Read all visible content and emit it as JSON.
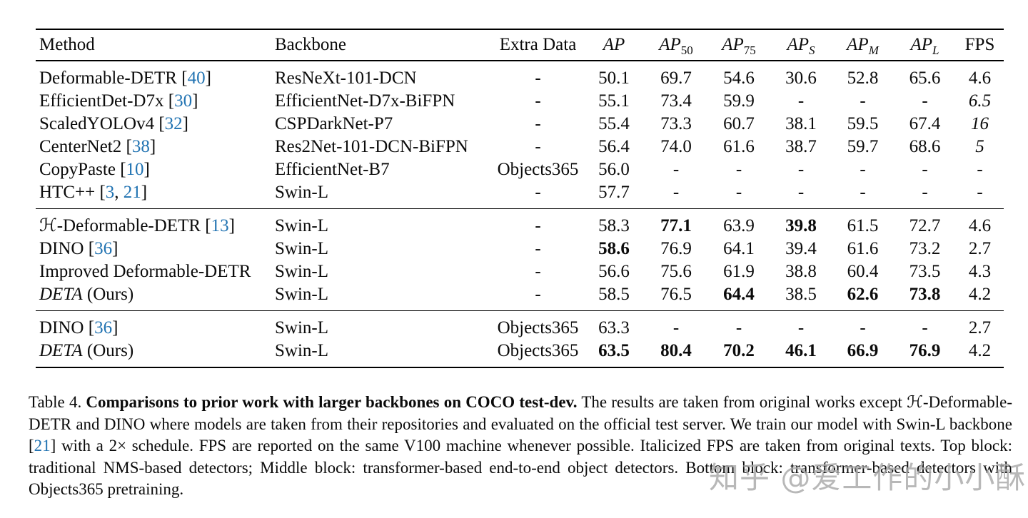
{
  "colors": {
    "citation_blue": "#2173b2",
    "text": "#0b0b0b",
    "watermark_gray": "#a9a9a9",
    "background": "#ffffff"
  },
  "table": {
    "columns": [
      {
        "label": "Method",
        "align": "left"
      },
      {
        "label": "Backbone",
        "align": "left"
      },
      {
        "label": "Extra Data",
        "align": "center"
      },
      {
        "label": "AP",
        "math": true
      },
      {
        "label": "AP",
        "sub": "50",
        "math": true
      },
      {
        "label": "AP",
        "sub": "75",
        "math": true
      },
      {
        "label": "AP",
        "sub": "S",
        "sub_italic": true,
        "math": true
      },
      {
        "label": "AP",
        "sub": "M",
        "sub_italic": true,
        "math": true
      },
      {
        "label": "AP",
        "sub": "L",
        "sub_italic": true,
        "math": true
      },
      {
        "label": "FPS"
      }
    ],
    "blocks": [
      [
        {
          "method": [
            {
              "t": "Deformable-DETR "
            },
            {
              "t": "["
            },
            {
              "t": "40",
              "c": true
            },
            {
              "t": "]"
            }
          ],
          "cells": [
            "ResNeXt-101-DCN",
            "-",
            "50.1",
            "69.7",
            "54.6",
            "30.6",
            "52.8",
            "65.6",
            "4.6"
          ]
        },
        {
          "method": [
            {
              "t": "EfficientDet-D7x "
            },
            {
              "t": "["
            },
            {
              "t": "30",
              "c": true
            },
            {
              "t": "]"
            }
          ],
          "cells": [
            "EfficientNet-D7x-BiFPN",
            "-",
            "55.1",
            "73.4",
            "59.9",
            "-",
            "-",
            "-",
            {
              "t": "6.5",
              "i": true
            }
          ]
        },
        {
          "method": [
            {
              "t": "ScaledYOLOv4 "
            },
            {
              "t": "["
            },
            {
              "t": "32",
              "c": true
            },
            {
              "t": "]"
            }
          ],
          "cells": [
            "CSPDarkNet-P7",
            "-",
            "55.4",
            "73.3",
            "60.7",
            "38.1",
            "59.5",
            "67.4",
            {
              "t": "16",
              "i": true
            }
          ]
        },
        {
          "method": [
            {
              "t": "CenterNet2 "
            },
            {
              "t": "["
            },
            {
              "t": "38",
              "c": true
            },
            {
              "t": "]"
            }
          ],
          "cells": [
            "Res2Net-101-DCN-BiFPN",
            "-",
            "56.4",
            "74.0",
            "61.6",
            "38.7",
            "59.7",
            "68.6",
            {
              "t": "5",
              "i": true
            }
          ]
        },
        {
          "method": [
            {
              "t": "CopyPaste "
            },
            {
              "t": "["
            },
            {
              "t": "10",
              "c": true
            },
            {
              "t": "]"
            }
          ],
          "cells": [
            "EfficientNet-B7",
            "Objects365",
            "56.0",
            "-",
            "-",
            "-",
            "-",
            "-",
            "-"
          ]
        },
        {
          "method": [
            {
              "t": "HTC++ "
            },
            {
              "t": "["
            },
            {
              "t": "3",
              "c": true
            },
            {
              "t": ", "
            },
            {
              "t": "21",
              "c": true
            },
            {
              "t": "]"
            }
          ],
          "cells": [
            "Swin-L",
            "-",
            "57.7",
            "-",
            "-",
            "-",
            "-",
            "-",
            "-"
          ]
        }
      ],
      [
        {
          "method": [
            {
              "t": "ℋ-Deformable-DETR "
            },
            {
              "t": "["
            },
            {
              "t": "13",
              "c": true
            },
            {
              "t": "]"
            }
          ],
          "cells": [
            "Swin-L",
            "-",
            "58.3",
            {
              "t": "77.1",
              "b": true
            },
            "63.9",
            {
              "t": "39.8",
              "b": true
            },
            "61.5",
            "72.7",
            "4.6"
          ]
        },
        {
          "method": [
            {
              "t": "DINO "
            },
            {
              "t": "["
            },
            {
              "t": "36",
              "c": true
            },
            {
              "t": "]"
            }
          ],
          "cells": [
            "Swin-L",
            "-",
            {
              "t": "58.6",
              "b": true
            },
            "76.9",
            "64.1",
            "39.4",
            "61.6",
            "73.2",
            "2.7"
          ]
        },
        {
          "method": [
            {
              "t": "Improved Deformable-DETR"
            }
          ],
          "cells": [
            "Swin-L",
            "-",
            "56.6",
            "75.6",
            "61.9",
            "38.8",
            "60.4",
            "73.5",
            "4.3"
          ]
        },
        {
          "method": [
            {
              "t": "DETA",
              "i": true
            },
            {
              "t": " (Ours)"
            }
          ],
          "cells": [
            "Swin-L",
            "-",
            "58.5",
            "76.5",
            {
              "t": "64.4",
              "b": true
            },
            "38.5",
            {
              "t": "62.6",
              "b": true
            },
            {
              "t": "73.8",
              "b": true
            },
            "4.2"
          ]
        }
      ],
      [
        {
          "method": [
            {
              "t": "DINO "
            },
            {
              "t": "["
            },
            {
              "t": "36",
              "c": true
            },
            {
              "t": "]"
            }
          ],
          "cells": [
            "Swin-L",
            "Objects365",
            "63.3",
            "-",
            "-",
            "-",
            "-",
            "-",
            "2.7"
          ]
        },
        {
          "method": [
            {
              "t": "DETA",
              "i": true
            },
            {
              "t": " (Ours)"
            }
          ],
          "cells": [
            "Swin-L",
            "Objects365",
            {
              "t": "63.5",
              "b": true
            },
            {
              "t": "80.4",
              "b": true
            },
            {
              "t": "70.2",
              "b": true
            },
            {
              "t": "46.1",
              "b": true
            },
            {
              "t": "66.9",
              "b": true
            },
            {
              "t": "76.9",
              "b": true
            },
            "4.2"
          ]
        }
      ]
    ]
  },
  "caption": {
    "segments": [
      {
        "t": "Table 4.  "
      },
      {
        "t": "Comparisons to prior work with larger backbones on COCO test-dev.",
        "b": true
      },
      {
        "t": "  The results are taken from original works except ℋ-Deformable-DETR and DINO where models are taken from their repositories and evaluated on the official test server. We train our model with Swin-L backbone "
      },
      {
        "t": "["
      },
      {
        "t": "21",
        "c": true
      },
      {
        "t": "]"
      },
      {
        "t": " with a 2× schedule. FPS are reported on the same V100 machine whenever possible. Italicized FPS are taken from original texts. Top block: traditional NMS-based detectors; Middle block: transformer-based end-to-end object detectors. Bottom block: transformer-based detectors with Objects365 pretraining."
      }
    ]
  },
  "watermark": {
    "text": "知乎 @爱工作的小小酥"
  }
}
